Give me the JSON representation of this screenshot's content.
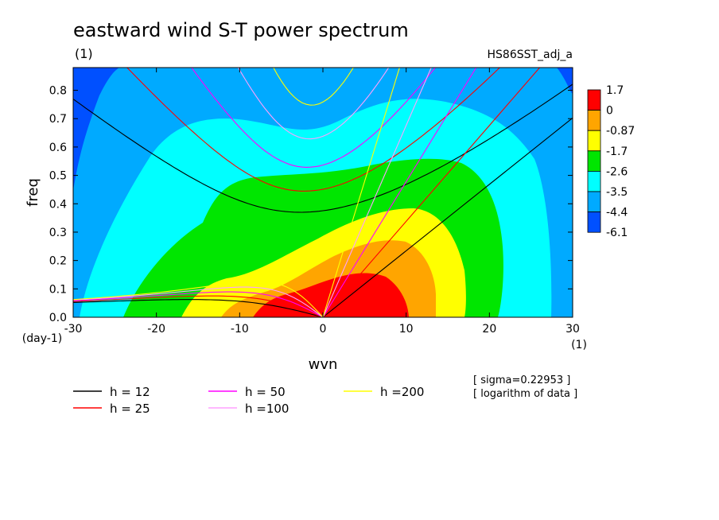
{
  "chart_data": {
    "type": "heatmap",
    "title": "eastward wind S-T power spectrum",
    "subtitle_left": "(1)",
    "subtitle_right": "HS86SST_adj_a",
    "xlabel": "wvn",
    "ylabel": "freq",
    "x_unit": "(1)",
    "y_unit": "(day-1)",
    "xlim": [
      -30,
      30
    ],
    "ylim": [
      0,
      0.88
    ],
    "xticks": [
      "-30",
      "-20",
      "-10",
      "0",
      "10",
      "20",
      "30"
    ],
    "yticks": [
      "0.0",
      "0.1",
      "0.2",
      "0.3",
      "0.4",
      "0.5",
      "0.6",
      "0.7",
      "0.8"
    ],
    "color_levels": [
      "1.7",
      "0",
      "-0.87",
      "-1.7",
      "-2.6",
      "-3.5",
      "-4.4",
      "-6.1"
    ],
    "colors": [
      "#ff0000",
      "#ffa500",
      "#ffff00",
      "#00e600",
      "#00ffff",
      "#00aaff",
      "#0050ff"
    ],
    "note_sigma": "[ sigma=0.22953 ]",
    "note_log": "[ logarithm of data ]",
    "dispersion_curves": [
      {
        "label": "h = 12",
        "h": 12,
        "color": "#000000"
      },
      {
        "label": "h = 25",
        "h": 25,
        "color": "#ff0000"
      },
      {
        "label": "h = 50",
        "h": 50,
        "color": "#ff00ff"
      },
      {
        "label": "h =100",
        "h": 100,
        "color": "#ffa0ff"
      },
      {
        "label": "h =200",
        "h": 200,
        "color": "#ffff00"
      }
    ]
  }
}
